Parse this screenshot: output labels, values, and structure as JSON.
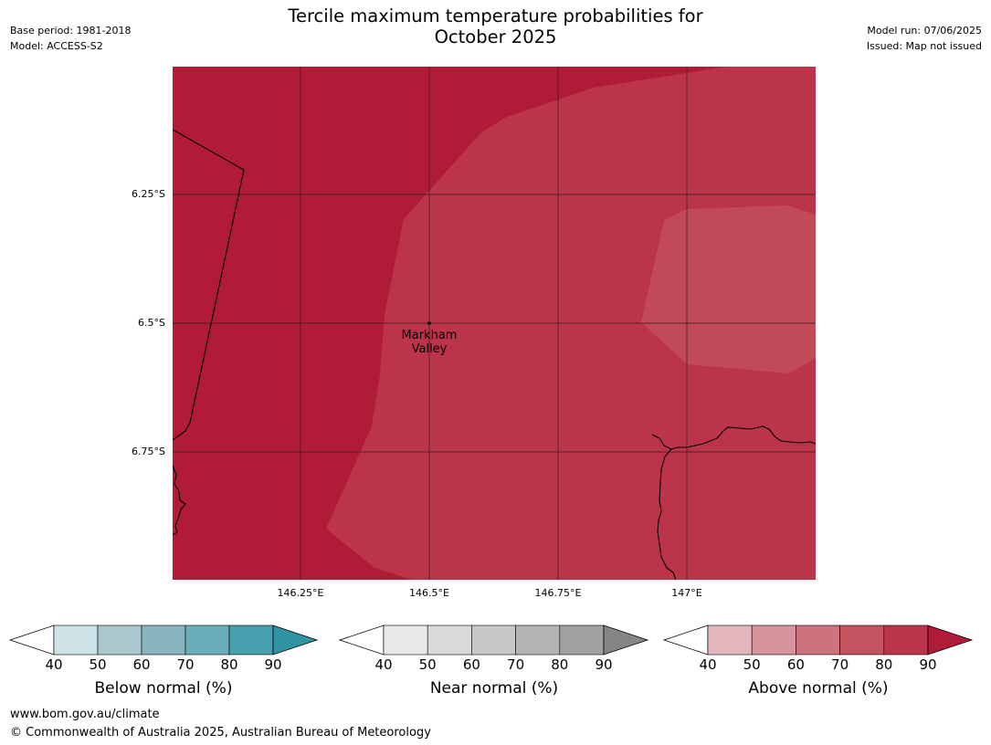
{
  "header": {
    "base_period": "Base period: 1981-2018",
    "model": "Model: ACCESS-S2",
    "model_run": "Model run: 07/06/2025",
    "issued": "Issued: Map not issued"
  },
  "title_line1": "Tercile maximum temperature probabilities for",
  "title_line2": "October 2025",
  "axes": {
    "y_ticks": [
      "6.25°S",
      "6.5°S",
      "6.75°S"
    ],
    "x_ticks": [
      "146.25°E",
      "146.5°E",
      "146.75°E",
      "147°E"
    ]
  },
  "place": {
    "name_line1": "Markham",
    "name_line2": "Valley"
  },
  "legends": [
    {
      "label": "Below normal (%)",
      "ticks": [
        "40",
        "50",
        "60",
        "70",
        "80",
        "90"
      ],
      "colors": [
        "#cce2e6",
        "#a8c8cd",
        "#88b5c0",
        "#6badb9",
        "#47a0ad",
        "#2f93a2"
      ]
    },
    {
      "label": "Near normal (%)",
      "ticks": [
        "40",
        "50",
        "60",
        "70",
        "80",
        "90"
      ],
      "colors": [
        "#e8e8e8",
        "#d9d9d9",
        "#c8c8c8",
        "#b4b4b4",
        "#a0a0a0",
        "#858585"
      ]
    },
    {
      "label": "Above normal (%)",
      "ticks": [
        "40",
        "50",
        "60",
        "70",
        "80",
        "90"
      ],
      "colors": [
        "#e2b6bc",
        "#d6949c",
        "#cc737d",
        "#c4525f",
        "#bc3449",
        "#b01c38"
      ]
    }
  ],
  "map_colors": {
    "above_90": "#b01c38",
    "above_80": "#bc3449",
    "above_70": "#c04a57"
  },
  "footer": {
    "url": "www.bom.gov.au/climate",
    "copyright": "© Commonwealth of Australia 2025, Australian Bureau of Meteorology"
  }
}
